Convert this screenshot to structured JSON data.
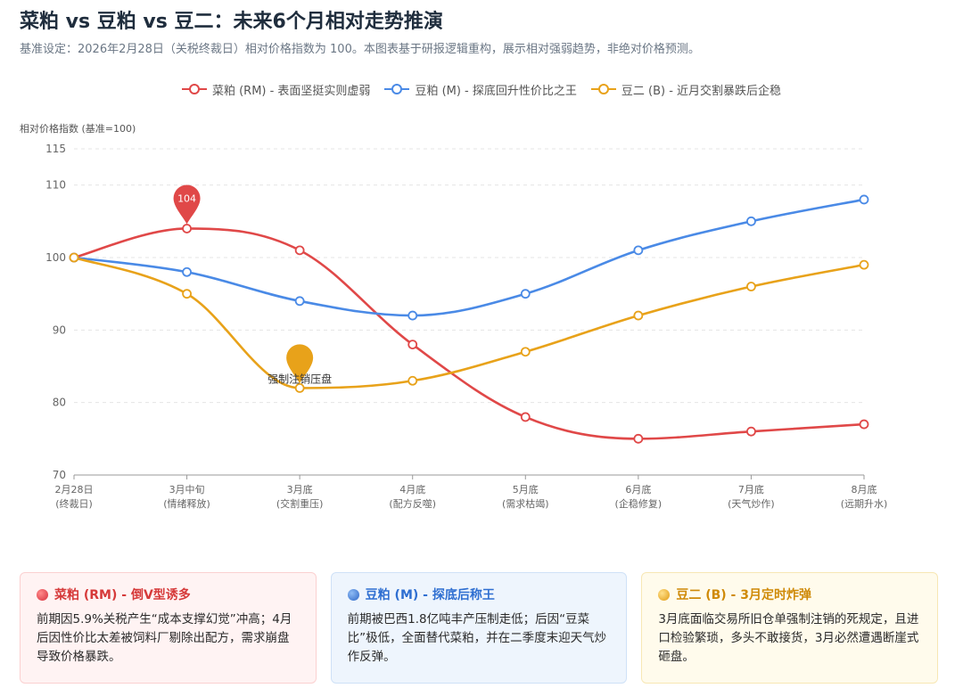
{
  "header": {
    "title": "菜粕 vs 豆粕 vs 豆二：未来6个月相对走势推演",
    "subtitle": "基准设定：2026年2月28日（关税终裁日）相对价格指数为 100。本图表基于研报逻辑重构，展示相对强弱趋势，非绝对价格预测。"
  },
  "colors": {
    "rm": "#e04848",
    "m": "#4a8ae6",
    "b": "#e8a21a",
    "grid": "#e5e5e5",
    "axis": "#999999"
  },
  "chart_data": {
    "type": "line",
    "ylabel": "相对价格指数 (基准=100)",
    "ylim": [
      70,
      115
    ],
    "yticks": [
      70,
      80,
      90,
      100,
      110,
      115
    ],
    "categories": [
      [
        "2月28日",
        "(终裁日)"
      ],
      [
        "3月中旬",
        "(情绪释放)"
      ],
      [
        "3月底",
        "(交割重压)"
      ],
      [
        "4月底",
        "(配方反噬)"
      ],
      [
        "5月底",
        "(需求枯竭)"
      ],
      [
        "6月底",
        "(企稳修复)"
      ],
      [
        "7月底",
        "(天气炒作)"
      ],
      [
        "8月底",
        "(远期升水)"
      ]
    ],
    "grid": true,
    "legend_position": "top-center",
    "series": [
      {
        "key": "rm",
        "name": "菜粕 (RM) - 表面坚挺实则虚弱",
        "values": [
          100,
          104,
          101,
          88,
          78,
          75,
          76,
          77
        ]
      },
      {
        "key": "m",
        "name": "豆粕 (M) - 探底回升性价比之王",
        "values": [
          100,
          98,
          94,
          92,
          95,
          101,
          105,
          108
        ]
      },
      {
        "key": "b",
        "name": "豆二 (B) - 近月交割暴跌后企稳",
        "values": [
          100,
          95,
          82,
          83,
          87,
          92,
          96,
          99
        ]
      }
    ],
    "annotations": [
      {
        "series": "rm",
        "index": 1,
        "type": "pin",
        "label": "104"
      },
      {
        "series": "b",
        "index": 2,
        "type": "pin",
        "label": "强制注销压盘"
      }
    ]
  },
  "cards": [
    {
      "key": "rm",
      "title": "菜粕 (RM) - 倒V型诱多",
      "body": "前期因5.9%关税产生“成本支撑幻觉”冲高；4月后因性价比太差被饲料厂剔除出配方，需求崩盘导致价格暴跌。"
    },
    {
      "key": "m",
      "title": "豆粕 (M) - 探底后称王",
      "body": "前期被巴西1.8亿吨丰产压制走低；后因“豆菜比”极低，全面替代菜粕，并在二季度末迎天气炒作反弹。"
    },
    {
      "key": "b",
      "title": "豆二 (B) - 3月定时炸弹",
      "body": "3月底面临交易所旧仓单强制注销的死规定，且进口检验繁琐，多头不敢接货，3月必然遭遇断崖式砸盘。"
    }
  ]
}
